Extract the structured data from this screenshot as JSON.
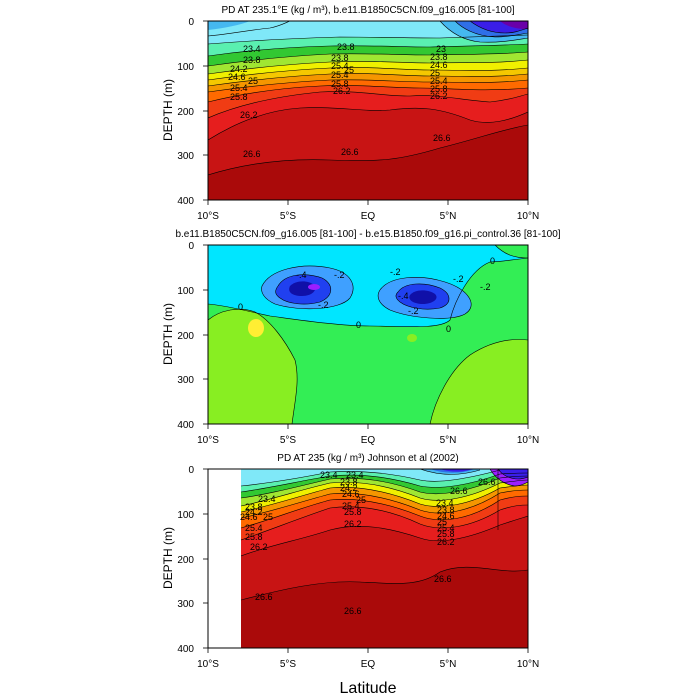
{
  "figure": {
    "xlabel": "Latitude"
  },
  "chart_data": [
    {
      "type": "heatmap",
      "title": "PD AT 235.1°E (kg / m³), b.e11.B1850C5CN.f09_g16.005 [81-100]",
      "ylabel": "DEPTH (m)",
      "xlim": [
        -10,
        10
      ],
      "ylim": [
        400,
        0
      ],
      "x_ticks": [
        "10°S",
        "5°S",
        "EQ",
        "5°N",
        "10°N"
      ],
      "y_ticks": [
        "0",
        "100",
        "200",
        "300",
        "400"
      ],
      "contour_labels": [
        "23.4",
        "23.8",
        "24.2",
        "24.6",
        "25",
        "25.4",
        "25.8",
        "26.2",
        "26.6",
        "23.8",
        "23.8",
        "25.4",
        "25",
        "25.4",
        "25.8",
        "26.2",
        "26.6",
        "23",
        "23.8",
        "24.6",
        "25",
        "25.4",
        "25.8",
        "26.2",
        "26.6"
      ],
      "colors": [
        "#6a00a8",
        "#3a1ee8",
        "#2f6fe8",
        "#45b8f0",
        "#7fe8f8",
        "#a8f4ff",
        "#5af0b0",
        "#32c832",
        "#a0e632",
        "#f0f000",
        "#f5c800",
        "#f59600",
        "#ff6a00",
        "#f03c14",
        "#e61e1e",
        "#c81414",
        "#aa0a0a"
      ]
    },
    {
      "type": "heatmap",
      "title": "b.e11.B1850C5CN.f09_g16.005 [81-100] - b.e15.B1850.f09_g16.pi_control.36 [81-100]",
      "ylabel": "DEPTH (m)",
      "xlim": [
        -10,
        10
      ],
      "ylim": [
        400,
        0
      ],
      "x_ticks": [
        "10°S",
        "5°S",
        "EQ",
        "5°N",
        "10°N"
      ],
      "y_ticks": [
        "0",
        "100",
        "200",
        "300",
        "400"
      ],
      "contour_labels": [
        "-.4",
        "-.2",
        "-.2",
        "-.4",
        "-.2",
        "-.2",
        "0",
        "-.2",
        "-.2",
        "0",
        "0",
        "0"
      ],
      "colors": [
        "#00e6ff",
        "#3fa0ff",
        "#2040f0",
        "#9b1eff",
        "#33ee55",
        "#88ee22",
        "#ffee33"
      ]
    },
    {
      "type": "heatmap",
      "title": "PD AT 235 (kg / m³) Johnson et al (2002)",
      "ylabel": "DEPTH (m)",
      "xlim": [
        -10,
        10
      ],
      "ylim": [
        400,
        0
      ],
      "x_ticks": [
        "10°S",
        "5°S",
        "EQ",
        "5°N",
        "10°N"
      ],
      "y_ticks": [
        "0",
        "100",
        "200",
        "300",
        "400"
      ],
      "contour_labels": [
        "23.4",
        "23.8",
        "24.2",
        "24.6",
        "23.4",
        "25",
        "25.4",
        "25.8",
        "26.2",
        "23.4",
        "23.8",
        "24.2",
        "24.6",
        "25",
        "25.4",
        "25.8",
        "26.2",
        "26.6",
        "23.4",
        "23.8",
        "24.6",
        "25",
        "25.4",
        "25.8",
        "26.2",
        "26.6",
        "26.6",
        "26.6",
        "26.6"
      ],
      "data_extent_x": [
        -8,
        10
      ],
      "colors": [
        "#9b1eff",
        "#3a1ee8",
        "#2f6fe8",
        "#45b8f0",
        "#7fe8f8",
        "#5af0b0",
        "#32c832",
        "#a0e632",
        "#f0f000",
        "#f59600",
        "#ff6a00",
        "#f03c14",
        "#e61e1e",
        "#c81414",
        "#aa0a0a"
      ]
    }
  ]
}
